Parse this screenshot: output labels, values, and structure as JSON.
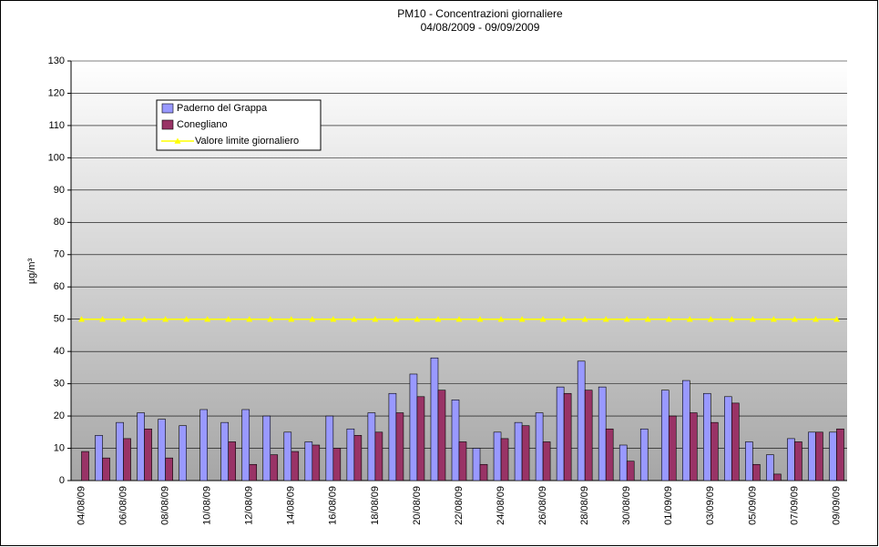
{
  "chart_data": {
    "type": "bar",
    "title": "PM10 - Concentrazioni giornaliere",
    "subtitle": "04/08/2009 - 09/09/2009",
    "y_label": "µg/m³",
    "categories": [
      "04/08/09",
      null,
      "06/08/09",
      null,
      "08/08/09",
      null,
      "10/08/09",
      null,
      "12/08/09",
      null,
      "14/08/09",
      null,
      "16/08/09",
      null,
      "18/08/09",
      null,
      "20/08/09",
      null,
      "22/08/09",
      null,
      "24/08/09",
      null,
      "26/08/09",
      null,
      "28/08/09",
      null,
      "30/08/09",
      null,
      "01/09/09",
      null,
      "03/09/09",
      null,
      "05/09/09",
      null,
      "07/09/09",
      null,
      "09/09/09"
    ],
    "series": [
      {
        "name": "Paderno del Grappa",
        "color": "#9999ff",
        "values": [
          null,
          14,
          18,
          21,
          19,
          17,
          22,
          18,
          22,
          20,
          15,
          12,
          20,
          16,
          21,
          27,
          33,
          38,
          25,
          10,
          15,
          18,
          21,
          29,
          37,
          29,
          11,
          16,
          28,
          31,
          27,
          26,
          12,
          8,
          13,
          15,
          15
        ]
      },
      {
        "name": "Conegliano",
        "color": "#993366",
        "values": [
          9,
          7,
          13,
          16,
          7,
          null,
          null,
          12,
          5,
          8,
          9,
          11,
          10,
          14,
          15,
          21,
          26,
          28,
          12,
          5,
          13,
          17,
          12,
          27,
          28,
          16,
          6,
          null,
          20,
          21,
          18,
          24,
          5,
          2,
          12,
          15,
          16
        ]
      },
      {
        "name": "Valore limite giornaliero",
        "color": "#ffff00",
        "style": "line",
        "values": [
          50,
          50,
          50,
          50,
          50,
          50,
          50,
          50,
          50,
          50,
          50,
          50,
          50,
          50,
          50,
          50,
          50,
          50,
          50,
          50,
          50,
          50,
          50,
          50,
          50,
          50,
          50,
          50,
          50,
          50,
          50,
          50,
          50,
          50,
          50,
          50,
          50
        ]
      }
    ],
    "ylim": [
      0,
      130
    ],
    "yticks": [
      0,
      10,
      20,
      30,
      40,
      50,
      60,
      70,
      80,
      90,
      100,
      110,
      120,
      130
    ],
    "grid": true
  }
}
